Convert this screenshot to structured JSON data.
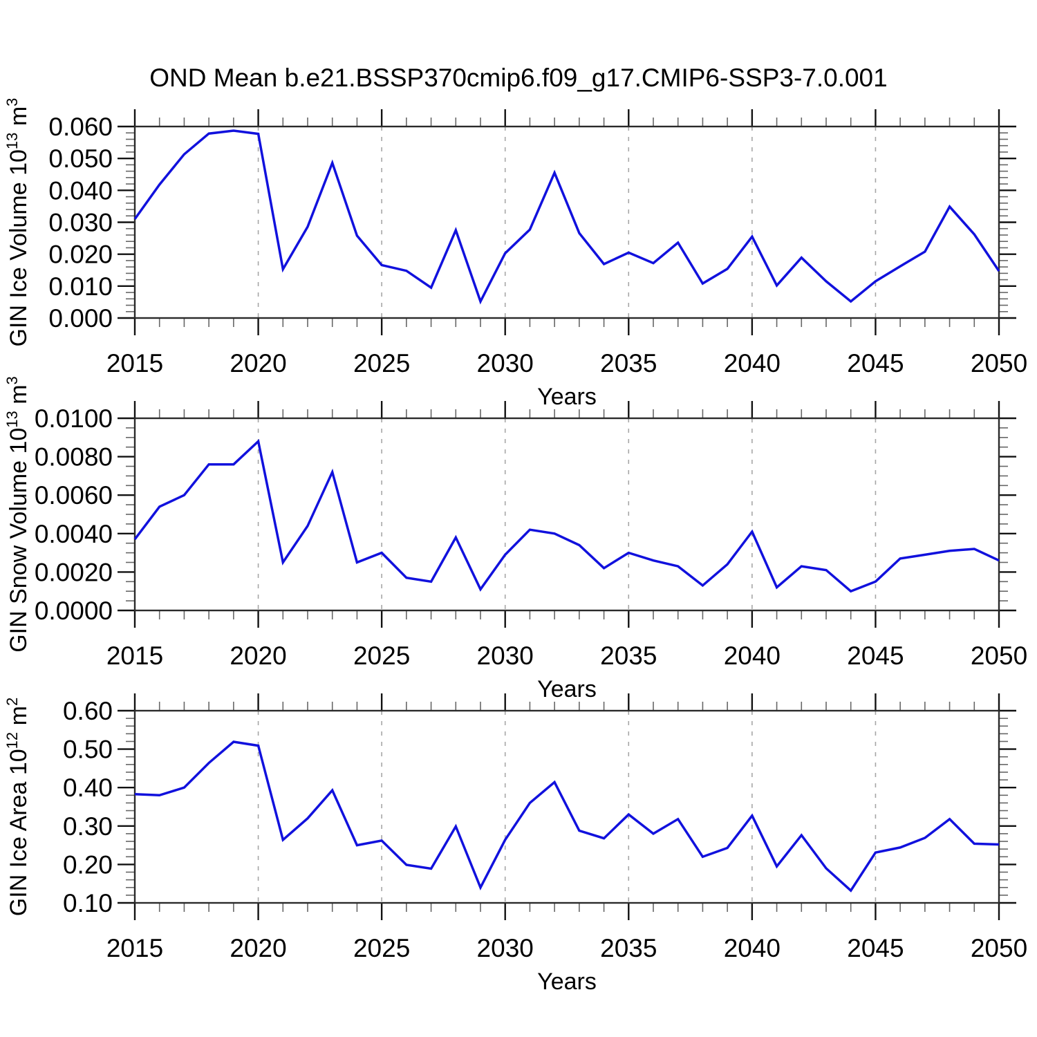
{
  "title": "OND Mean b.e21.BSSP370cmip6.f09_g17.CMIP6-SSP3-7.0.001",
  "xlabel": "Years",
  "colors": {
    "line": "#1111dd",
    "frame": "#2a2a2a",
    "grid": "#a6a6a6",
    "tick_major": "#111111",
    "tick_minor": "#666666",
    "text": "#000000",
    "background": "#ffffff"
  },
  "x_axis": {
    "min": 2015,
    "max": 2050,
    "major_step": 5,
    "minor_step": 1,
    "tick_labels": [
      "2015",
      "2020",
      "2025",
      "2030",
      "2035",
      "2040",
      "2045",
      "2050"
    ],
    "grid_years": [
      2020,
      2025,
      2030,
      2035,
      2040,
      2045
    ]
  },
  "chart_data": [
    {
      "type": "line",
      "ylabel_parts": [
        {
          "text": "GIN Ice Volume 10"
        },
        {
          "text": "13",
          "sup": true
        },
        {
          "text": " m"
        },
        {
          "text": "3",
          "sup": true
        }
      ],
      "ylim": [
        0.0,
        0.06
      ],
      "ytick_major": 0.01,
      "ytick_minor": 0.002,
      "ydecimals": 3,
      "ytick_labels": [
        "0.000",
        "0.010",
        "0.020",
        "0.030",
        "0.040",
        "0.050",
        "0.060"
      ],
      "x": [
        2015,
        2016,
        2017,
        2018,
        2019,
        2020,
        2021,
        2022,
        2023,
        2024,
        2025,
        2026,
        2027,
        2028,
        2029,
        2030,
        2031,
        2032,
        2033,
        2034,
        2035,
        2036,
        2037,
        2038,
        2039,
        2040,
        2041,
        2042,
        2043,
        2044,
        2045,
        2046,
        2047,
        2048,
        2049,
        2050
      ],
      "values": [
        0.031,
        0.0418,
        0.0513,
        0.0578,
        0.0587,
        0.0577,
        0.0153,
        0.0286,
        0.0486,
        0.0258,
        0.0166,
        0.0148,
        0.0095,
        0.0275,
        0.0052,
        0.0203,
        0.0277,
        0.0455,
        0.0266,
        0.0169,
        0.0205,
        0.0172,
        0.0236,
        0.0108,
        0.0154,
        0.0255,
        0.0102,
        0.0189,
        0.0115,
        0.0052,
        0.0115,
        0.0162,
        0.0208,
        0.0349,
        0.0262,
        0.0147
      ]
    },
    {
      "type": "line",
      "ylabel_parts": [
        {
          "text": "GIN Snow Volume 10"
        },
        {
          "text": "13",
          "sup": true
        },
        {
          "text": " m"
        },
        {
          "text": "3",
          "sup": true
        }
      ],
      "ylim": [
        0.0,
        0.01
      ],
      "ytick_major": 0.002,
      "ytick_minor": 0.0005,
      "ydecimals": 4,
      "ytick_labels": [
        "0.0000",
        "0.0020",
        "0.0040",
        "0.0060",
        "0.0080",
        "0.0100"
      ],
      "x": [
        2015,
        2016,
        2017,
        2018,
        2019,
        2020,
        2021,
        2022,
        2023,
        2024,
        2025,
        2026,
        2027,
        2028,
        2029,
        2030,
        2031,
        2032,
        2033,
        2034,
        2035,
        2036,
        2037,
        2038,
        2039,
        2040,
        2041,
        2042,
        2043,
        2044,
        2045,
        2046,
        2047,
        2048,
        2049,
        2050
      ],
      "values": [
        0.0037,
        0.0054,
        0.006,
        0.0076,
        0.0076,
        0.0088,
        0.0025,
        0.0044,
        0.0072,
        0.0025,
        0.003,
        0.0017,
        0.0015,
        0.0038,
        0.0011,
        0.0029,
        0.0042,
        0.004,
        0.0034,
        0.0022,
        0.003,
        0.0026,
        0.0023,
        0.0013,
        0.0024,
        0.0041,
        0.0012,
        0.0023,
        0.0021,
        0.001,
        0.0015,
        0.0027,
        0.0029,
        0.0031,
        0.0032,
        0.0026
      ]
    },
    {
      "type": "line",
      "ylabel_parts": [
        {
          "text": "GIN Ice Area 10"
        },
        {
          "text": "12",
          "sup": true
        },
        {
          "text": " m"
        },
        {
          "text": "2",
          "sup": true
        }
      ],
      "ylim": [
        0.1,
        0.6
      ],
      "ytick_major": 0.1,
      "ytick_minor": 0.02,
      "ydecimals": 2,
      "ytick_labels": [
        "0.10",
        "0.20",
        "0.30",
        "0.40",
        "0.50",
        "0.60"
      ],
      "x": [
        2015,
        2016,
        2017,
        2018,
        2019,
        2020,
        2021,
        2022,
        2023,
        2024,
        2025,
        2026,
        2027,
        2028,
        2029,
        2030,
        2031,
        2032,
        2033,
        2034,
        2035,
        2036,
        2037,
        2038,
        2039,
        2040,
        2041,
        2042,
        2043,
        2044,
        2045,
        2046,
        2047,
        2048,
        2049,
        2050
      ],
      "values": [
        0.383,
        0.38,
        0.4,
        0.464,
        0.519,
        0.509,
        0.264,
        0.32,
        0.393,
        0.25,
        0.262,
        0.199,
        0.189,
        0.299,
        0.14,
        0.264,
        0.36,
        0.414,
        0.288,
        0.268,
        0.33,
        0.28,
        0.318,
        0.22,
        0.243,
        0.327,
        0.195,
        0.276,
        0.19,
        0.132,
        0.231,
        0.244,
        0.269,
        0.318,
        0.254,
        0.252
      ]
    }
  ]
}
